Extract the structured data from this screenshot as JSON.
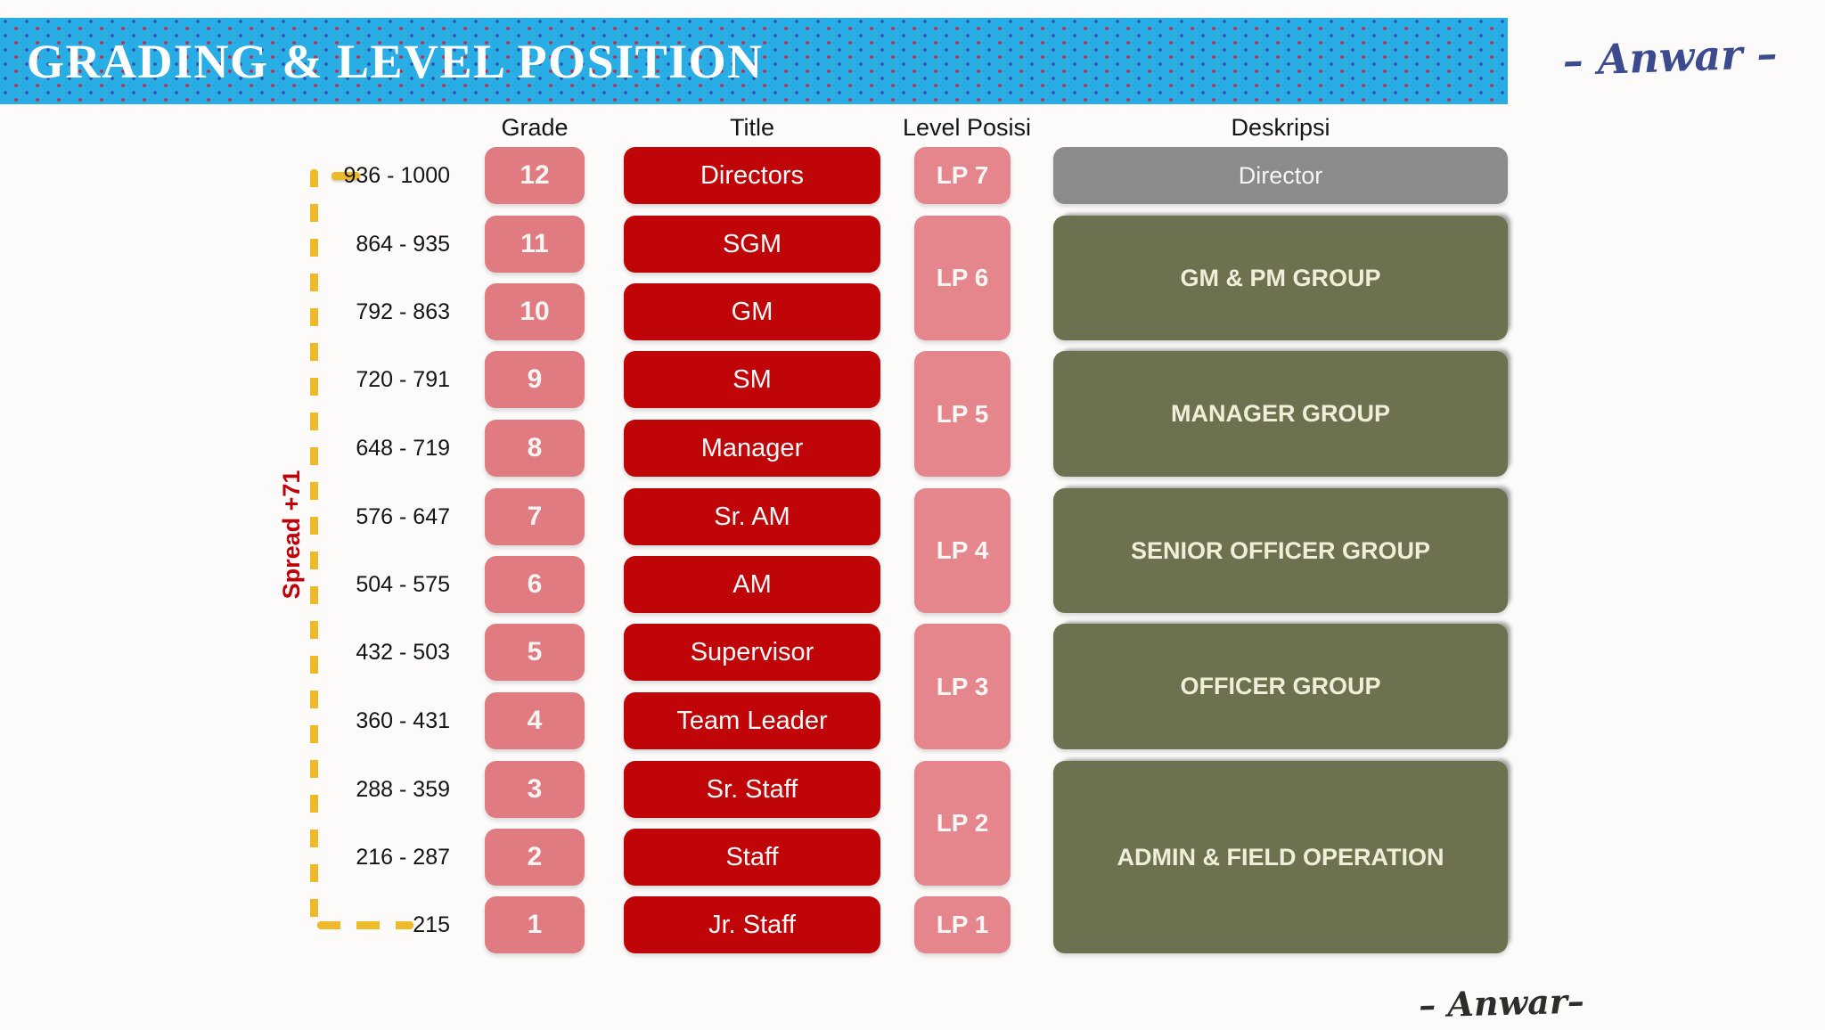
{
  "banner": {
    "title": "GRADING & LEVEL POSITION"
  },
  "signature_top": "– Anwar –",
  "signature_bottom": "– Anwar–",
  "columns": {
    "grade": "Grade",
    "title": "Title",
    "level": "Level Posisi",
    "desc": "Deskripsi"
  },
  "spread_label": "Spread +71",
  "rows": [
    {
      "range": "936 - 1000",
      "grade": "12",
      "title": "Directors"
    },
    {
      "range": "864 - 935",
      "grade": "11",
      "title": "SGM"
    },
    {
      "range": "792 - 863",
      "grade": "10",
      "title": "GM"
    },
    {
      "range": "720 - 791",
      "grade": "9",
      "title": "SM"
    },
    {
      "range": "648 - 719",
      "grade": "8",
      "title": "Manager"
    },
    {
      "range": "576 - 647",
      "grade": "7",
      "title": "Sr. AM"
    },
    {
      "range": "504 - 575",
      "grade": "6",
      "title": "AM"
    },
    {
      "range": "432 - 503",
      "grade": "5",
      "title": "Supervisor"
    },
    {
      "range": "360 - 431",
      "grade": "4",
      "title": "Team Leader"
    },
    {
      "range": "288 - 359",
      "grade": "3",
      "title": "Sr. Staff"
    },
    {
      "range": "216 - 287",
      "grade": "2",
      "title": "Staff"
    },
    {
      "range": "215",
      "grade": "1",
      "title": "Jr. Staff"
    }
  ],
  "levels": [
    {
      "label": "LP 7",
      "rows": 1
    },
    {
      "label": "LP 6",
      "rows": 2
    },
    {
      "label": "LP 5",
      "rows": 2
    },
    {
      "label": "LP 4",
      "rows": 2
    },
    {
      "label": "LP 3",
      "rows": 2
    },
    {
      "label": "LP 2",
      "rows": 2
    },
    {
      "label": "LP 1",
      "rows": 1
    }
  ],
  "descriptions": [
    {
      "label": "Director",
      "rows": 1
    },
    {
      "label": "GM & PM GROUP",
      "rows": 2
    },
    {
      "label": "MANAGER GROUP",
      "rows": 2
    },
    {
      "label": "SENIOR OFFICER GROUP",
      "rows": 2
    },
    {
      "label": "OFFICER GROUP",
      "rows": 2
    },
    {
      "label": "ADMIN & FIELD OPERATION",
      "rows": 3
    }
  ],
  "colors": {
    "banner_blue": "#29ade5",
    "banner_dot_red": "#c42846",
    "banner_dot_blue": "#3246aa",
    "grade_pink": "#df7b81",
    "title_red": "#c00509",
    "lp_pink": "#e4868c",
    "desc_gray": "#8b8b8b",
    "desc_olive": "#6d7150",
    "olive_text": "#f0eed8",
    "spread_red": "#c00009",
    "dash_yellow": "#edba2b",
    "signature_blue": "#3b4b8e",
    "signature_black": "#2e2d29"
  }
}
